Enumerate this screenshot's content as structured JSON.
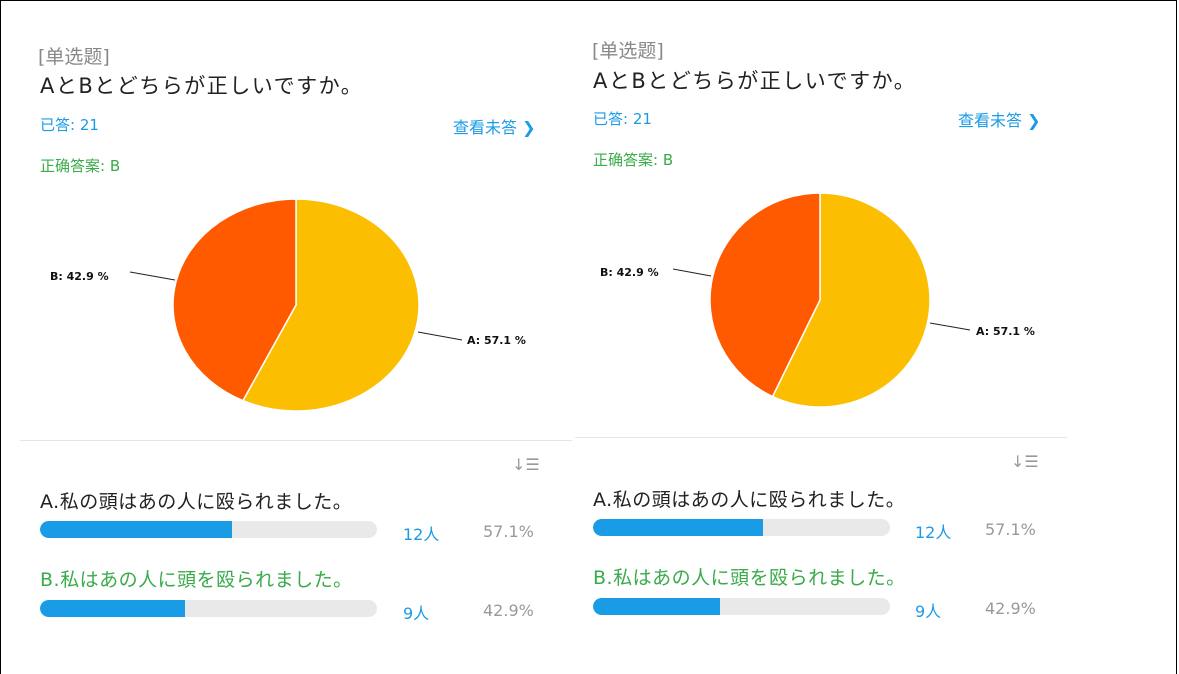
{
  "panels": [
    {
      "type_tag": "[单选题]",
      "question": "AとBとどちらが正しいですか。",
      "answered": "已答: 21",
      "view_unanswered": "查看未答",
      "correct_answer": "正确答案: B",
      "sort_icon": "sort-icon",
      "chart_data": {
        "type": "pie",
        "slices": [
          {
            "label": "A: 57.1 %",
            "value": 57.1,
            "color": "#FBBE00"
          },
          {
            "label": "B: 42.9 %",
            "value": 42.9,
            "color": "#FF5A00"
          }
        ]
      },
      "options": [
        {
          "label": "A.私の頭はあの人に殴られました。",
          "count": "12人",
          "percent": "57.1%",
          "fraction": 0.571
        },
        {
          "label": "B.私はあの人に頭を殴られました。",
          "count": "9人",
          "percent": "42.9%",
          "fraction": 0.429
        }
      ]
    },
    {
      "type_tag": "[单选题]",
      "question": "AとBとどちらが正しいですか。",
      "answered": "已答: 21",
      "view_unanswered": "查看未答",
      "correct_answer": "正确答案: B",
      "sort_icon": "sort-icon",
      "chart_data": {
        "type": "pie",
        "slices": [
          {
            "label": "A: 57.1 %",
            "value": 57.1,
            "color": "#FBBE00"
          },
          {
            "label": "B: 42.9 %",
            "value": 42.9,
            "color": "#FF5A00"
          }
        ]
      },
      "options": [
        {
          "label": "A.私の頭はあの人に殴られました。",
          "count": "12人",
          "percent": "57.1%",
          "fraction": 0.571
        },
        {
          "label": "B.私はあの人に頭を殴られました。",
          "count": "9人",
          "percent": "42.9%",
          "fraction": 0.429
        }
      ]
    }
  ]
}
